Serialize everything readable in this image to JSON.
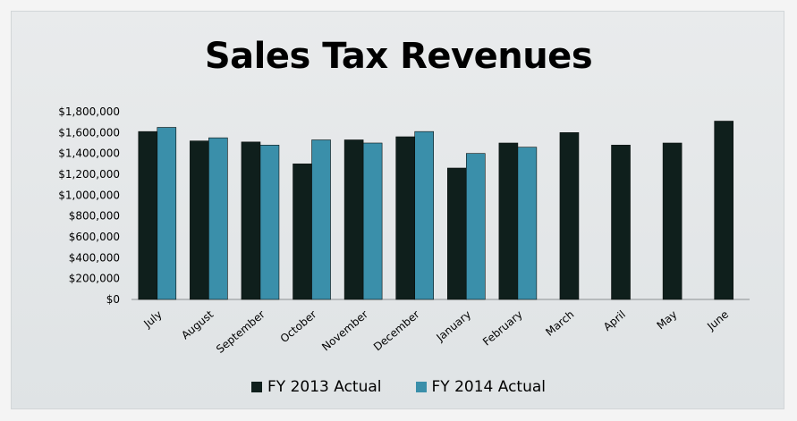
{
  "colors": {
    "fy2013": "#0f1f1c",
    "fy2014": "#3a8faa",
    "axis": "#8a8f92",
    "text": "#000000"
  },
  "chart_data": {
    "type": "bar",
    "title": "Sales Tax Revenues",
    "xlabel": "",
    "ylabel": "",
    "ylim": [
      0,
      1800000
    ],
    "yticks": [
      0,
      200000,
      400000,
      600000,
      800000,
      1000000,
      1200000,
      1400000,
      1600000,
      1800000
    ],
    "ytick_labels": [
      "$0",
      "$200,000",
      "$400,000",
      "$600,000",
      "$800,000",
      "$1,000,000",
      "$1,200,000",
      "$1,400,000",
      "$1,600,000",
      "$1,800,000"
    ],
    "grid": false,
    "legend_position": "bottom",
    "categories": [
      "July",
      "August",
      "September",
      "October",
      "November",
      "December",
      "January",
      "February",
      "March",
      "April",
      "May",
      "June"
    ],
    "series": [
      {
        "name": "FY 2013 Actual",
        "values": [
          1610000,
          1520000,
          1510000,
          1300000,
          1530000,
          1560000,
          1260000,
          1500000,
          1600000,
          1480000,
          1500000,
          1710000
        ]
      },
      {
        "name": "FY 2014 Actual",
        "values": [
          1650000,
          1550000,
          1480000,
          1530000,
          1500000,
          1610000,
          1400000,
          1460000,
          null,
          null,
          null,
          null
        ]
      }
    ]
  }
}
